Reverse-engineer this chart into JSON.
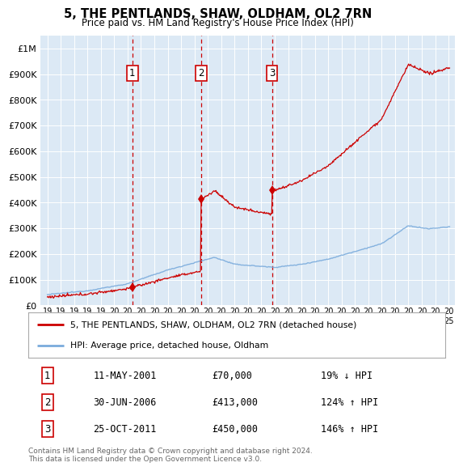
{
  "title": "5, THE PENTLANDS, SHAW, OLDHAM, OL2 7RN",
  "subtitle": "Price paid vs. HM Land Registry's House Price Index (HPI)",
  "plot_bg_color": "#dce9f5",
  "ylim": [
    0,
    1050000
  ],
  "yticks": [
    0,
    100000,
    200000,
    300000,
    400000,
    500000,
    600000,
    700000,
    800000,
    900000,
    1000000
  ],
  "ytick_labels": [
    "£0",
    "£100K",
    "£200K",
    "£300K",
    "£400K",
    "£500K",
    "£600K",
    "£700K",
    "£800K",
    "£900K",
    "£1M"
  ],
  "xlim_start": 1994.5,
  "xlim_end": 2025.5,
  "xticks": [
    1995,
    1996,
    1997,
    1998,
    1999,
    2000,
    2001,
    2002,
    2003,
    2004,
    2005,
    2006,
    2007,
    2008,
    2009,
    2010,
    2011,
    2012,
    2013,
    2014,
    2015,
    2016,
    2017,
    2018,
    2019,
    2020,
    2021,
    2022,
    2023,
    2024,
    2025
  ],
  "sale_dates": [
    2001.36,
    2006.5,
    2011.81
  ],
  "sale_prices": [
    70000,
    413000,
    450000
  ],
  "sale_labels": [
    "1",
    "2",
    "3"
  ],
  "hpi_color": "#7aabdc",
  "property_color": "#cc0000",
  "legend_property": "5, THE PENTLANDS, SHAW, OLDHAM, OL2 7RN (detached house)",
  "legend_hpi": "HPI: Average price, detached house, Oldham",
  "table_rows": [
    [
      "1",
      "11-MAY-2001",
      "£70,000",
      "19% ↓ HPI"
    ],
    [
      "2",
      "30-JUN-2006",
      "£413,000",
      "124% ↑ HPI"
    ],
    [
      "3",
      "25-OCT-2011",
      "£450,000",
      "146% ↑ HPI"
    ]
  ],
  "footnote": "Contains HM Land Registry data © Crown copyright and database right 2024.\nThis data is licensed under the Open Government Licence v3.0."
}
